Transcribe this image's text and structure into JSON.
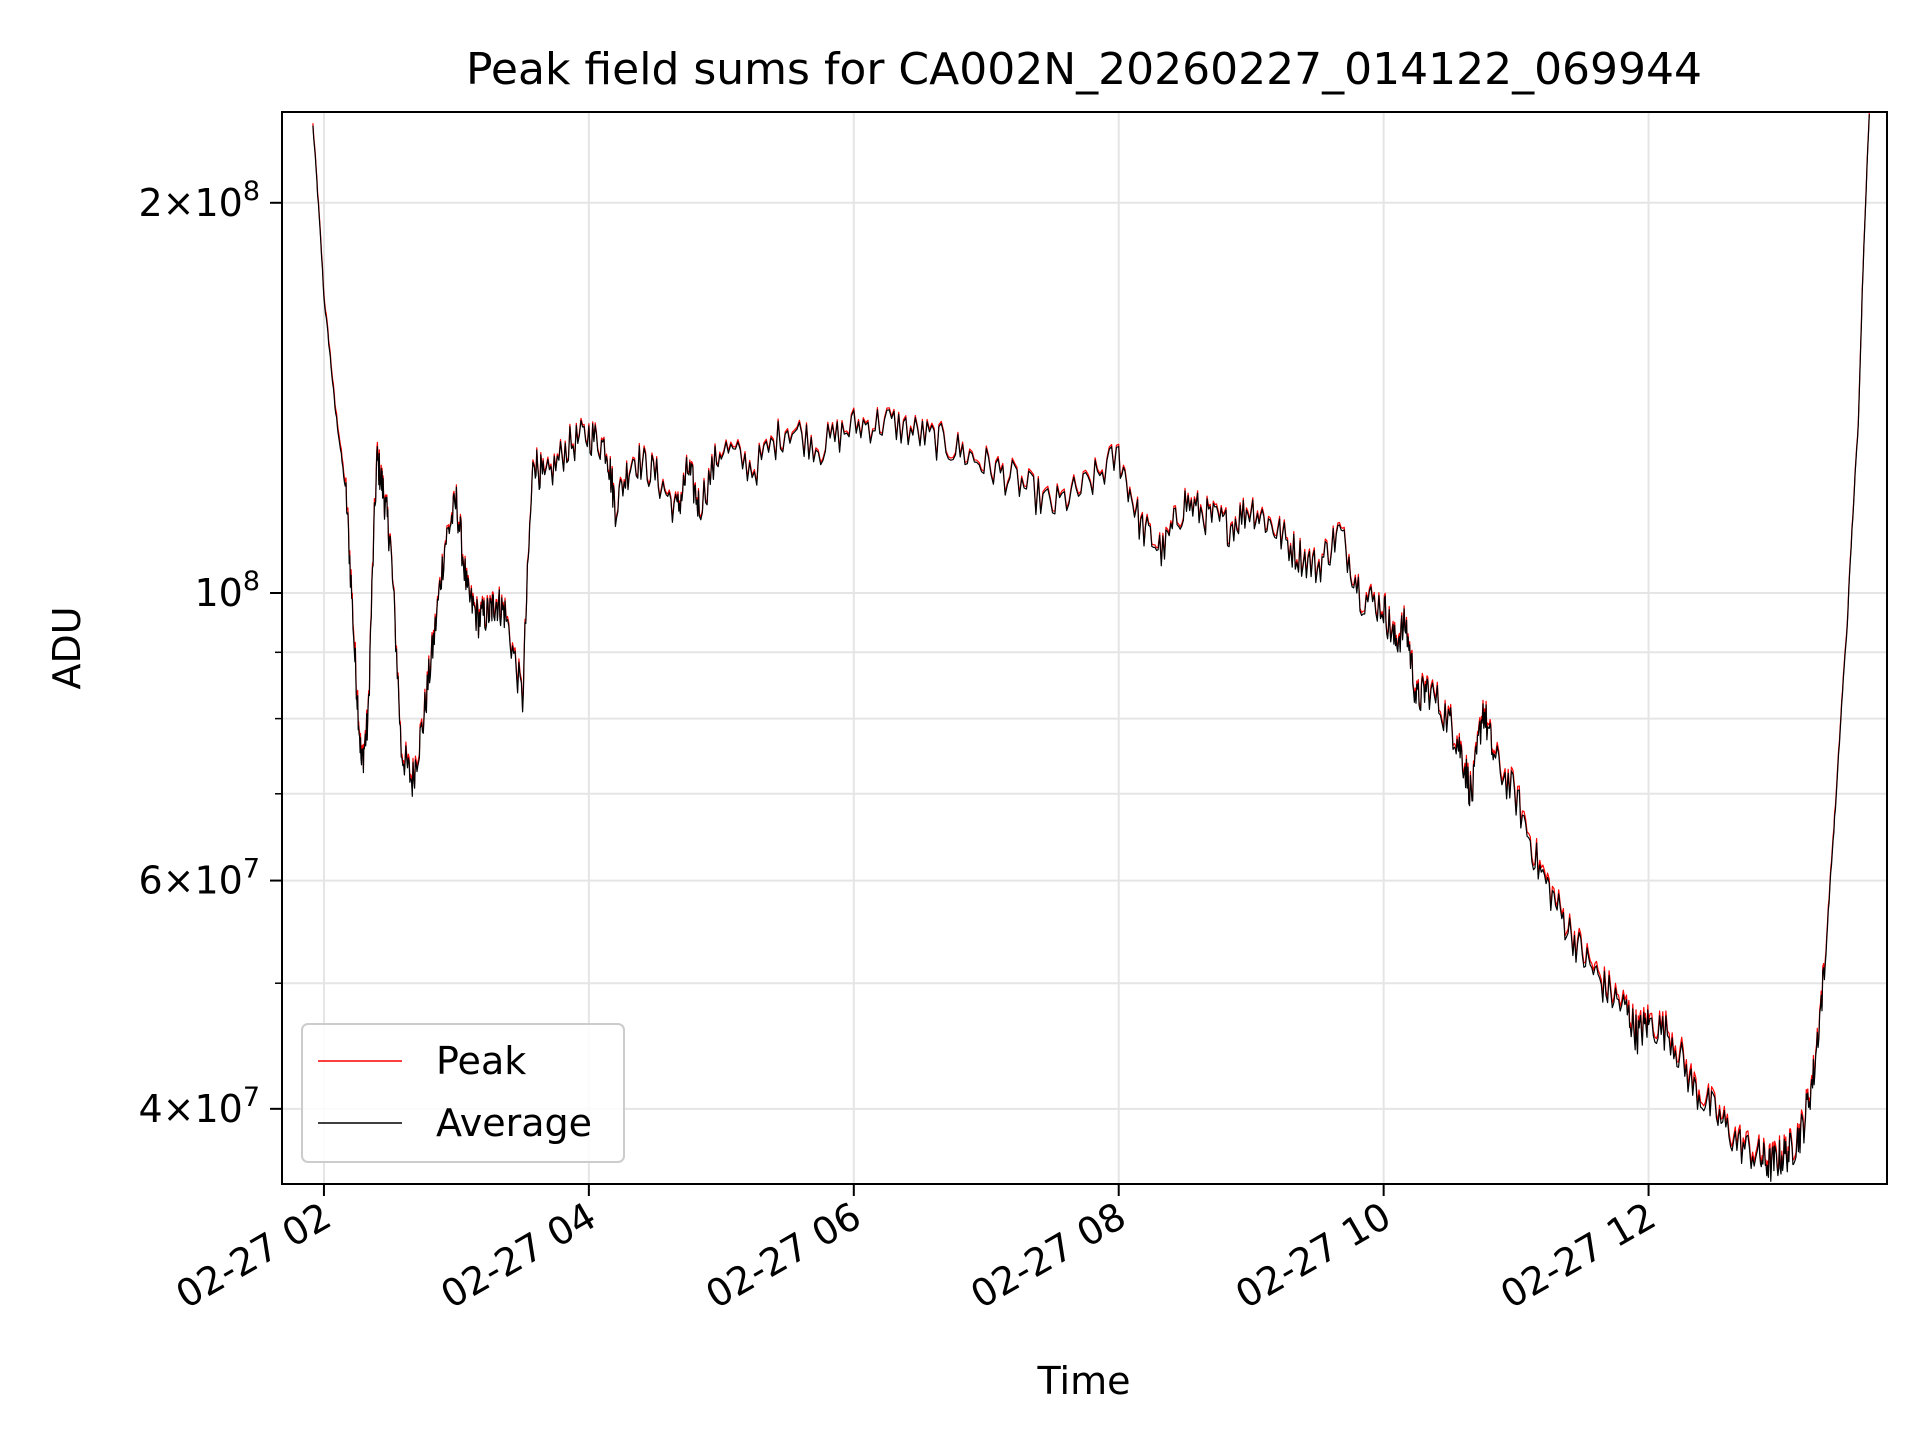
{
  "chart_data": {
    "type": "line",
    "title": "Peak field sums for CA002N_20260227_014122_069944",
    "xlabel": "Time",
    "ylabel": "ADU",
    "y_scale": "log",
    "ylim": [
      35000000,
      235000000
    ],
    "xlim": [
      "2026-02-27T01:41",
      "2026-02-27T13:48"
    ],
    "grid": true,
    "legend_position": "lower-left",
    "x_ticks": [
      {
        "value": "2026-02-27T02:00",
        "label": "02-27 02"
      },
      {
        "value": "2026-02-27T04:00",
        "label": "02-27 04"
      },
      {
        "value": "2026-02-27T06:00",
        "label": "02-27 06"
      },
      {
        "value": "2026-02-27T08:00",
        "label": "02-27 08"
      },
      {
        "value": "2026-02-27T10:00",
        "label": "02-27 10"
      },
      {
        "value": "2026-02-27T12:00",
        "label": "02-27 12"
      }
    ],
    "y_ticks": [
      {
        "value": 200000000,
        "mantissa": "2",
        "exp": "8"
      },
      {
        "value": 100000000,
        "mantissa": "",
        "exp": "8"
      },
      {
        "value": 60000000,
        "mantissa": "6",
        "exp": "7"
      },
      {
        "value": 40000000,
        "mantissa": "4",
        "exp": "7"
      }
    ],
    "y_minor_ticks": [
      300000000,
      90000000,
      80000000,
      70000000,
      50000000
    ],
    "x": [
      "2026-02-27T01:55",
      "2026-02-27T02:00",
      "2026-02-27T02:05",
      "2026-02-27T02:10",
      "2026-02-27T02:14",
      "2026-02-27T02:17",
      "2026-02-27T02:20",
      "2026-02-27T02:24",
      "2026-02-27T02:27",
      "2026-02-27T02:30",
      "2026-02-27T02:35",
      "2026-02-27T02:40",
      "2026-02-27T02:45",
      "2026-02-27T02:50",
      "2026-02-27T02:55",
      "2026-02-27T03:00",
      "2026-02-27T03:05",
      "2026-02-27T03:10",
      "2026-02-27T03:15",
      "2026-02-27T03:18",
      "2026-02-27T03:22",
      "2026-02-27T03:30",
      "2026-02-27T03:35",
      "2026-02-27T03:40",
      "2026-02-27T03:50",
      "2026-02-27T04:00",
      "2026-02-27T04:08",
      "2026-02-27T04:12",
      "2026-02-27T04:20",
      "2026-02-27T04:30",
      "2026-02-27T04:40",
      "2026-02-27T04:45",
      "2026-02-27T04:50",
      "2026-02-27T05:00",
      "2026-02-27T05:15",
      "2026-02-27T05:30",
      "2026-02-27T05:45",
      "2026-02-27T06:00",
      "2026-02-27T06:15",
      "2026-02-27T06:30",
      "2026-02-27T06:45",
      "2026-02-27T07:00",
      "2026-02-27T07:15",
      "2026-02-27T07:30",
      "2026-02-27T07:45",
      "2026-02-27T08:00",
      "2026-02-27T08:10",
      "2026-02-27T08:20",
      "2026-02-27T08:30",
      "2026-02-27T08:40",
      "2026-02-27T08:50",
      "2026-02-27T09:00",
      "2026-02-27T09:10",
      "2026-02-27T09:20",
      "2026-02-27T09:30",
      "2026-02-27T09:40",
      "2026-02-27T09:50",
      "2026-02-27T10:00",
      "2026-02-27T10:05",
      "2026-02-27T10:10",
      "2026-02-27T10:15",
      "2026-02-27T10:20",
      "2026-02-27T10:30",
      "2026-02-27T10:35",
      "2026-02-27T10:40",
      "2026-02-27T10:45",
      "2026-02-27T10:50",
      "2026-02-27T11:00",
      "2026-02-27T11:10",
      "2026-02-27T11:20",
      "2026-02-27T11:30",
      "2026-02-27T11:40",
      "2026-02-27T11:50",
      "2026-02-27T11:55",
      "2026-02-27T12:00",
      "2026-02-27T12:10",
      "2026-02-27T12:20",
      "2026-02-27T12:30",
      "2026-02-27T12:40",
      "2026-02-27T12:50",
      "2026-02-27T12:55",
      "2026-02-27T13:00",
      "2026-02-27T13:05",
      "2026-02-27T13:10",
      "2026-02-27T13:15",
      "2026-02-27T13:20",
      "2026-02-27T13:25",
      "2026-02-27T13:30",
      "2026-02-27T13:35",
      "2026-02-27T13:40"
    ],
    "series": [
      {
        "name": "Peak",
        "color": "#ff0000",
        "width": 1.2,
        "values": [
          230,
          170,
          140,
          120,
          90,
          74,
          80,
          128,
          120,
          110,
          76,
          72,
          80,
          93,
          110,
          118,
          100,
          96,
          97,
          99,
          97,
          83,
          128,
          122,
          130,
          133,
          130,
          117,
          128,
          124,
          116,
          125,
          117,
          130,
          125,
          135,
          130,
          135,
          136,
          133,
          130,
          126,
          122,
          117,
          121,
          128,
          113,
          108,
          118,
          115,
          113,
          117,
          113,
          108,
          105,
          112,
          100,
          98,
          92,
          95,
          83,
          85,
          80,
          76,
          70,
          82,
          75,
          70,
          62,
          57,
          53,
          50,
          48,
          46,
          47,
          46,
          42,
          40,
          38,
          37,
          36.5,
          37,
          37.5,
          39,
          43,
          52,
          70,
          95,
          135,
          235
        ]
      },
      {
        "name": "Average",
        "color": "#000000",
        "width": 1.2,
        "values": [
          229,
          169,
          139,
          119,
          89,
          73.5,
          79.5,
          127,
          119.5,
          109.5,
          75.5,
          71.5,
          79.5,
          92.5,
          109.5,
          117.5,
          99.5,
          95.5,
          96.5,
          98.5,
          96.5,
          82.5,
          127.5,
          121.5,
          129.5,
          132.5,
          129.5,
          116.5,
          127.5,
          123.5,
          115.5,
          124.5,
          116.5,
          129.5,
          124.5,
          134.5,
          129.5,
          134.5,
          135.5,
          132.5,
          129.5,
          125.5,
          121.5,
          116.5,
          120.5,
          127.5,
          112.5,
          107.5,
          117.5,
          114.5,
          112.5,
          116.5,
          112.5,
          107.5,
          104.5,
          111.5,
          99.5,
          97.5,
          91.5,
          94.5,
          82.5,
          84.5,
          79.5,
          75.5,
          69.5,
          81.5,
          74.5,
          69.5,
          61.5,
          56.6,
          52.6,
          49.6,
          47.6,
          45.6,
          46.6,
          45.6,
          41.6,
          39.7,
          37.7,
          36.7,
          36.2,
          36.7,
          37.2,
          38.7,
          42.7,
          51.6,
          69.5,
          94.5,
          134.5,
          234
        ]
      }
    ],
    "values_unit_multiplier": 1000000
  }
}
